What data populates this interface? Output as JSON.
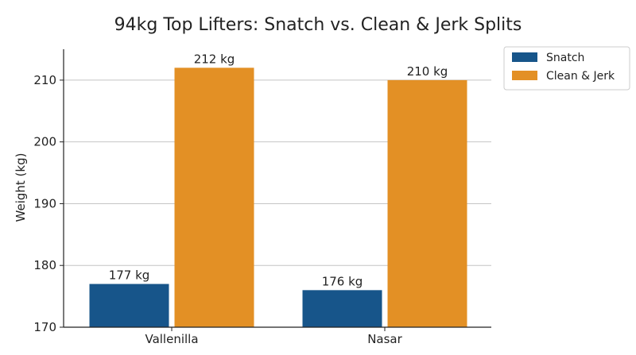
{
  "chart_data": {
    "type": "bar",
    "title": "94kg Top Lifters: Snatch vs. Clean & Jerk Splits",
    "xlabel": "",
    "ylabel": "Weight (kg)",
    "categories": [
      "Vallenilla",
      "Nasar"
    ],
    "series": [
      {
        "name": "Snatch",
        "values": [
          177,
          176
        ],
        "color": "#17558a",
        "labels": [
          "177 kg",
          "176 kg"
        ]
      },
      {
        "name": "Clean & Jerk",
        "values": [
          212,
          210
        ],
        "color": "#e39025",
        "labels": [
          "212 kg",
          "210 kg"
        ]
      }
    ],
    "ylim": [
      170,
      215
    ],
    "yticks": [
      170,
      180,
      190,
      200,
      210
    ],
    "grid": true,
    "legend_position": "outside-top-right"
  }
}
